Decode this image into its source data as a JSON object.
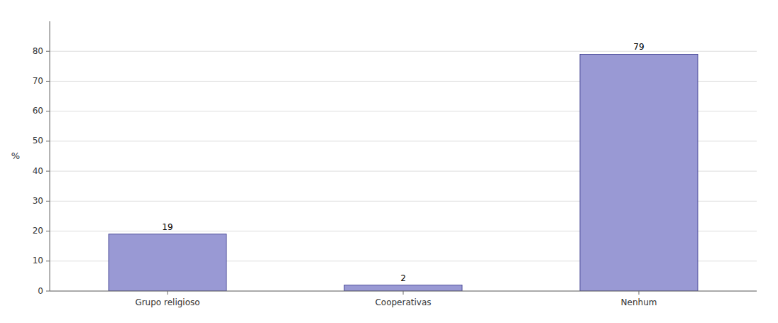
{
  "chart_data": {
    "type": "bar",
    "ylabel": "%",
    "categories": [
      "Grupo religioso",
      "Cooperativas",
      "Nenhum"
    ],
    "values": [
      19,
      2,
      79
    ],
    "color": "#9999d4",
    "ylim": [
      0,
      90
    ],
    "yticks": [
      0,
      10,
      20,
      30,
      40,
      50,
      60,
      70,
      80
    ],
    "grid": true,
    "data_labels": true
  }
}
